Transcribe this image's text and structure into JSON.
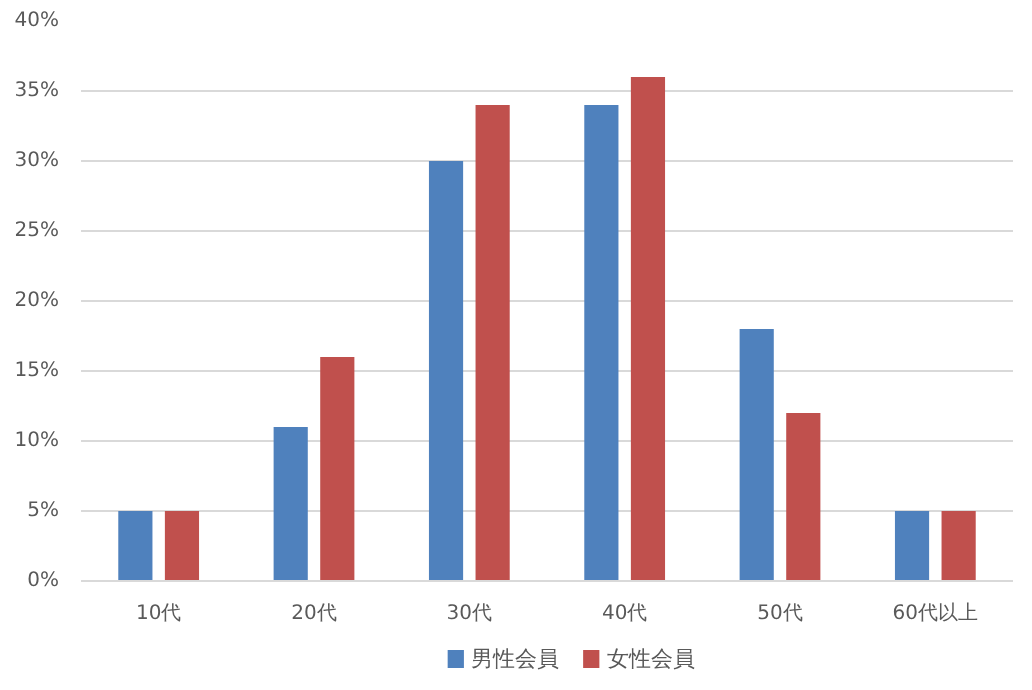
{
  "chart_data": {
    "type": "bar",
    "categories": [
      "10代",
      "20代",
      "30代",
      "40代",
      "50代",
      "60代以上"
    ],
    "series": [
      {
        "name": "男性会員",
        "color": "#4f81bd",
        "values": [
          5,
          11,
          30,
          34,
          18,
          5
        ]
      },
      {
        "name": "女性会員",
        "color": "#c0504d",
        "values": [
          5,
          16,
          34,
          36,
          12,
          5
        ]
      }
    ],
    "ylim": [
      0,
      40
    ],
    "yticks": [
      {
        "value": 0,
        "label": "0%"
      },
      {
        "value": 5,
        "label": "5%"
      },
      {
        "value": 10,
        "label": "10%"
      },
      {
        "value": 15,
        "label": "15%"
      },
      {
        "value": 20,
        "label": "20%"
      },
      {
        "value": 25,
        "label": "25%"
      },
      {
        "value": 30,
        "label": "30%"
      },
      {
        "value": 35,
        "label": "35%"
      },
      {
        "value": 40,
        "label": "40%"
      }
    ],
    "grid": "y",
    "legend": "bottom"
  }
}
